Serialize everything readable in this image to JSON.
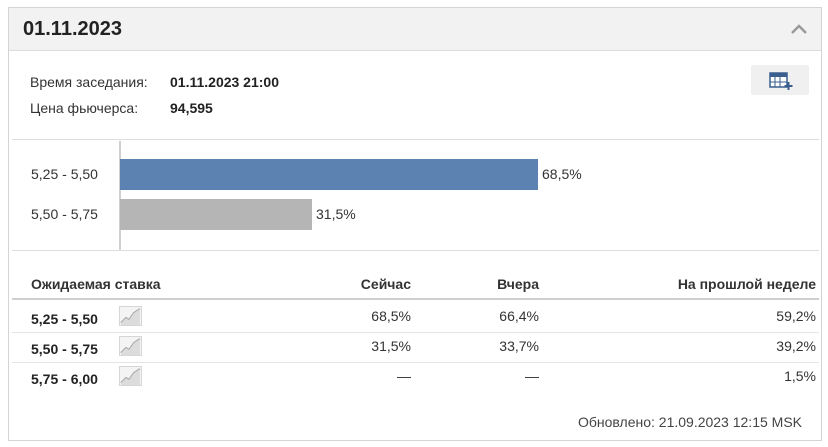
{
  "header": {
    "title": "01.11.2023"
  },
  "info": {
    "meeting_label": "Время заседания:",
    "meeting_value": "01.11.2023 21:00",
    "futures_label": "Цена фьючерса:",
    "futures_value": "94,595"
  },
  "chart_data": {
    "type": "bar",
    "orientation": "horizontal",
    "categories": [
      "5,25 - 5,50",
      "5,50 - 5,75"
    ],
    "values": [
      68.5,
      31.5
    ],
    "value_labels": [
      "68,5%",
      "31,5%"
    ],
    "colors": [
      "#5b82b0",
      "#b5b5b5"
    ],
    "xlim": [
      0,
      100
    ]
  },
  "table": {
    "headers": [
      "Ожидаемая ставка",
      "Сейчас",
      "Вчера",
      "На прошлой неделе"
    ],
    "rows": [
      {
        "range": "5,25 - 5,50",
        "now": "68,5%",
        "yesterday": "66,4%",
        "last_week": "59,2%"
      },
      {
        "range": "5,50 - 5,75",
        "now": "31,5%",
        "yesterday": "33,7%",
        "last_week": "39,2%"
      },
      {
        "range": "5,75 - 6,00",
        "now": "—",
        "yesterday": "—",
        "last_week": "1,5%"
      }
    ]
  },
  "footer": {
    "updated": "Обновлено: 21.09.2023 12:15 MSK"
  },
  "icons": {
    "collapse": "chevron-up-icon",
    "calendar": "calendar-add-icon",
    "trend": "line-chart-icon"
  }
}
